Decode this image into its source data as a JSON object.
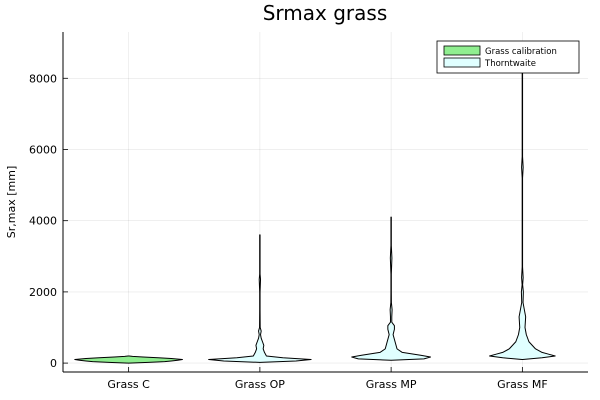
{
  "chart_data": {
    "type": "violin",
    "title": "Srmax grass",
    "ylabel": "Sr,max [mm]",
    "xlabel": "",
    "categories": [
      "Grass C",
      "Grass OP",
      "Grass MP",
      "Grass MF"
    ],
    "ylim": [
      -250,
      9300
    ],
    "yticks": [
      0,
      2000,
      4000,
      6000,
      8000
    ],
    "grid": true,
    "legend_position": "top-right",
    "series": [
      {
        "name": "Grass calibration",
        "color": "#90ee90",
        "violins": [
          {
            "category": "Grass C",
            "profile": [
              [
                0,
                0.005
              ],
              [
                20,
                0.3
              ],
              [
                40,
                0.55
              ],
              [
                60,
                0.65
              ],
              [
                80,
                0.75
              ],
              [
                100,
                0.82
              ],
              [
                130,
                0.65
              ],
              [
                150,
                0.45
              ],
              [
                170,
                0.22
              ],
              [
                190,
                0.06
              ],
              [
                200,
                0.01
              ]
            ]
          }
        ]
      },
      {
        "name": "Thorntwaite",
        "color": "#e0ffff",
        "violins": [
          {
            "category": "Grass OP",
            "profile": [
              [
                20,
                0.005
              ],
              [
                60,
                0.55
              ],
              [
                100,
                0.78
              ],
              [
                150,
                0.35
              ],
              [
                200,
                0.1
              ],
              [
                300,
                0.07
              ],
              [
                400,
                0.05
              ],
              [
                500,
                0.06
              ],
              [
                600,
                0.04
              ],
              [
                700,
                0.02
              ],
              [
                800,
                0.01
              ],
              [
                900,
                0.02
              ],
              [
                1000,
                0.005
              ],
              [
                1200,
                0.004
              ],
              [
                1500,
                0.003
              ],
              [
                2000,
                0.003
              ],
              [
                2350,
                0.01
              ],
              [
                2500,
                0.003
              ],
              [
                3000,
                0.003
              ],
              [
                3600,
                0.003
              ]
            ]
          },
          {
            "category": "Grass MP",
            "profile": [
              [
                80,
                0.005
              ],
              [
                120,
                0.5
              ],
              [
                170,
                0.6
              ],
              [
                220,
                0.45
              ],
              [
                300,
                0.17
              ],
              [
                400,
                0.09
              ],
              [
                600,
                0.06
              ],
              [
                800,
                0.03
              ],
              [
                950,
                0.05
              ],
              [
                1050,
                0.05
              ],
              [
                1150,
                0.01
              ],
              [
                1300,
                0.01
              ],
              [
                1500,
                0.015
              ],
              [
                1700,
                0.004
              ],
              [
                2000,
                0.003
              ],
              [
                2500,
                0.003
              ],
              [
                2950,
                0.012
              ],
              [
                3300,
                0.003
              ],
              [
                4100,
                0.003
              ]
            ]
          },
          {
            "category": "Grass MF",
            "profile": [
              [
                100,
                0.005
              ],
              [
                150,
                0.3
              ],
              [
                200,
                0.5
              ],
              [
                250,
                0.4
              ],
              [
                300,
                0.3
              ],
              [
                400,
                0.2
              ],
              [
                600,
                0.1
              ],
              [
                800,
                0.06
              ],
              [
                1000,
                0.04
              ],
              [
                1300,
                0.05
              ],
              [
                1500,
                0.03
              ],
              [
                1700,
                0.01
              ],
              [
                2000,
                0.015
              ],
              [
                2200,
                0.004
              ],
              [
                2400,
                0.012
              ],
              [
                2700,
                0.003
              ],
              [
                3500,
                0.003
              ],
              [
                5200,
                0.003
              ],
              [
                5500,
                0.012
              ],
              [
                5800,
                0.003
              ],
              [
                7000,
                0.003
              ],
              [
                8000,
                0.003
              ],
              [
                9000,
                0.003
              ]
            ]
          }
        ]
      }
    ]
  }
}
